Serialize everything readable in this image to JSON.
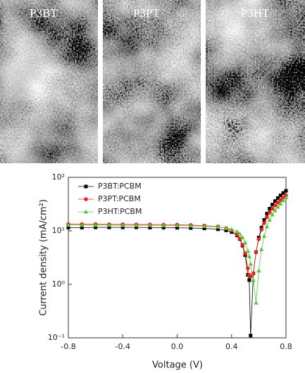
{
  "images": [
    {
      "label": "P3BT"
    },
    {
      "label": "P3PT"
    },
    {
      "label": "P3HT"
    }
  ],
  "chart_data": {
    "type": "line",
    "log_y": true,
    "legend": "upper left",
    "xlabel": "Voltage (V)",
    "ylabel": "Current density (mA/cm²)",
    "x": [
      -0.8,
      -0.7,
      -0.6,
      -0.5,
      -0.4,
      -0.3,
      -0.2,
      -0.1,
      0,
      0.1,
      0.2,
      0.3,
      0.36,
      0.4,
      0.44,
      0.46,
      0.48,
      0.5,
      0.52,
      0.53,
      0.54,
      0.56,
      0.58,
      0.6,
      0.62,
      0.64,
      0.66,
      0.68,
      0.7,
      0.72,
      0.74,
      0.76,
      0.78,
      0.8
    ],
    "series": [
      {
        "name": "P3BT:PCBM",
        "color": "#000000",
        "marker": "square",
        "values": [
          11.5,
          11.5,
          11.6,
          11.6,
          11.6,
          11.6,
          11.5,
          11.5,
          11.4,
          11.3,
          11.1,
          10.7,
          10.2,
          9.5,
          8.2,
          7.0,
          5.3,
          3.5,
          1.5,
          1.2,
          0.11,
          1.6,
          4.0,
          7.5,
          11.5,
          16,
          21,
          26,
          31,
          36,
          41,
          46,
          51,
          56
        ]
      },
      {
        "name": "P3PT:PCBM",
        "color": "#e8231f",
        "marker": "circle",
        "values": [
          13.3,
          13.3,
          13.3,
          13.2,
          13.2,
          13.1,
          13.1,
          13.0,
          13.0,
          12.8,
          12.5,
          12.0,
          11.2,
          10.2,
          8.5,
          7.2,
          5.5,
          3.8,
          2.0,
          1.5,
          1.4,
          1.6,
          4.0,
          7.0,
          10.5,
          14,
          18,
          22,
          26,
          30,
          34,
          38,
          42,
          46
        ]
      },
      {
        "name": "P3HT:PCBM",
        "color": "#5cc33c",
        "marker": "triangle",
        "values": [
          12.8,
          12.8,
          12.8,
          12.8,
          12.7,
          12.7,
          12.7,
          12.6,
          12.6,
          12.4,
          12.2,
          11.8,
          11.3,
          10.7,
          9.7,
          8.8,
          7.5,
          6.0,
          4.2,
          3.3,
          2.4,
          1.2,
          0.45,
          1.8,
          4.5,
          8,
          12,
          16,
          20,
          24,
          28,
          32,
          37,
          42
        ]
      }
    ],
    "xlim": [
      -0.8,
      0.8
    ],
    "xticks": [
      -0.8,
      -0.4,
      {
        "value": 0,
        "label": "0.0"
      },
      0.4,
      0.8
    ],
    "ylim": [
      0.1,
      100
    ],
    "yticks": [
      {
        "value": 0.1,
        "label": "10⁻¹"
      },
      {
        "value": 1,
        "label": "10⁰"
      },
      {
        "value": 10,
        "label": "10¹"
      },
      {
        "value": 100,
        "label": "10²"
      }
    ]
  }
}
